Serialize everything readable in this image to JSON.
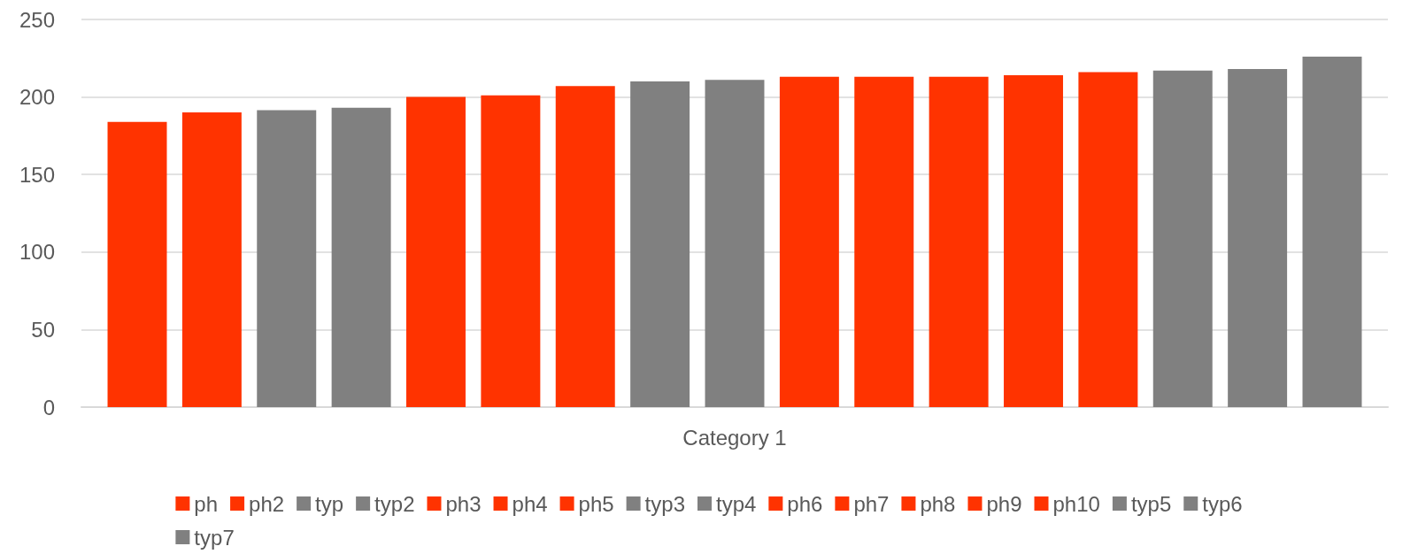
{
  "chart_data": {
    "type": "bar",
    "categories": [
      "Category 1"
    ],
    "ylim": [
      0,
      250
    ],
    "yticks": [
      0,
      50,
      100,
      150,
      200,
      250
    ],
    "grid": "y",
    "legend": "bottom",
    "series": [
      {
        "name": "ph",
        "color": "#ff3300",
        "values": [
          184
        ]
      },
      {
        "name": "ph2",
        "color": "#ff3300",
        "values": [
          190
        ]
      },
      {
        "name": "typ",
        "color": "#808080",
        "values": [
          191.5
        ]
      },
      {
        "name": "typ2",
        "color": "#808080",
        "values": [
          193
        ]
      },
      {
        "name": "ph3",
        "color": "#ff3300",
        "values": [
          200
        ]
      },
      {
        "name": "ph4",
        "color": "#ff3300",
        "values": [
          201
        ]
      },
      {
        "name": "ph5",
        "color": "#ff3300",
        "values": [
          207
        ]
      },
      {
        "name": "typ3",
        "color": "#808080",
        "values": [
          210
        ]
      },
      {
        "name": "typ4",
        "color": "#808080",
        "values": [
          211
        ]
      },
      {
        "name": "ph6",
        "color": "#ff3300",
        "values": [
          213
        ]
      },
      {
        "name": "ph7",
        "color": "#ff3300",
        "values": [
          213
        ]
      },
      {
        "name": "ph8",
        "color": "#ff3300",
        "values": [
          213
        ]
      },
      {
        "name": "ph9",
        "color": "#ff3300",
        "values": [
          214
        ]
      },
      {
        "name": "ph10",
        "color": "#ff3300",
        "values": [
          216
        ]
      },
      {
        "name": "typ5",
        "color": "#808080",
        "values": [
          217
        ]
      },
      {
        "name": "typ6",
        "color": "#808080",
        "values": [
          218
        ]
      },
      {
        "name": "typ7",
        "color": "#808080",
        "values": [
          226
        ]
      }
    ]
  }
}
